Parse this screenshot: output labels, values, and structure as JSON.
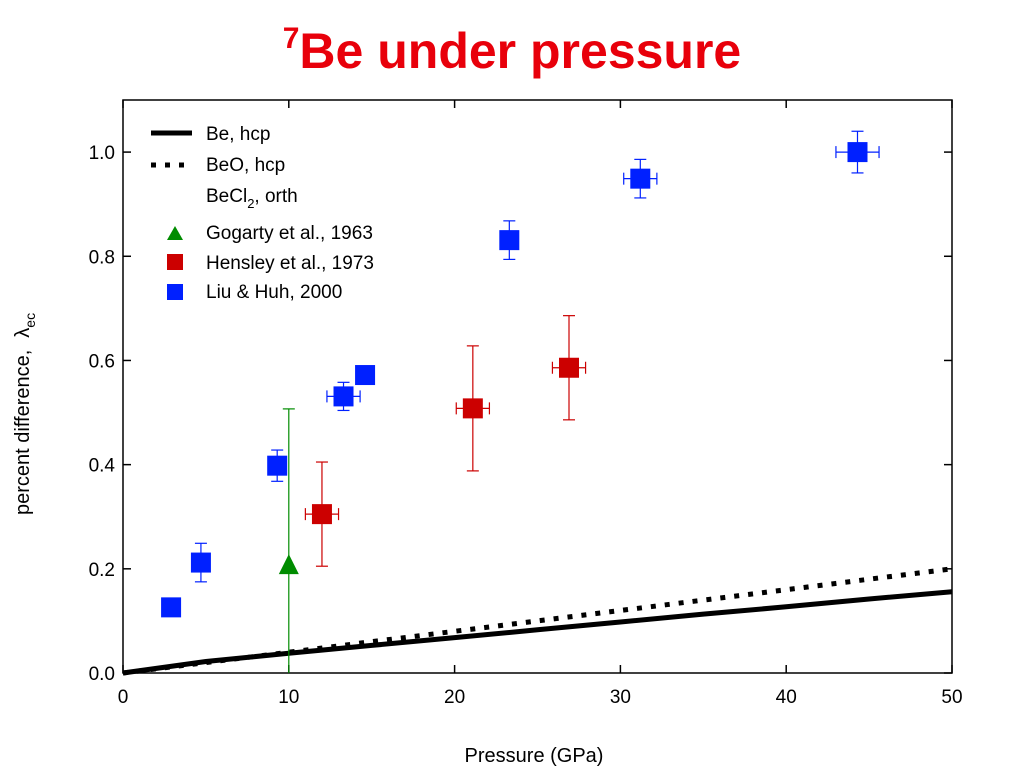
{
  "title": {
    "superscript": "7",
    "main": "Be under pressure"
  },
  "colors": {
    "title": "#e8000b",
    "gogarty": "#008c00",
    "hensley": "#cc0000",
    "liu": "#0020ff",
    "lines": "#000000"
  },
  "chart_data": {
    "type": "scatter",
    "xlabel": "Pressure (GPa)",
    "ylabel": {
      "text": "percent difference,",
      "symbol": "λ",
      "subscript": "ec"
    },
    "xlim": [
      0,
      50
    ],
    "ylim": [
      0,
      1.1
    ],
    "x_ticks": [
      0,
      10,
      20,
      30,
      40,
      50
    ],
    "x_tick_labels": [
      "0",
      "10",
      "20",
      "30",
      "40",
      "50"
    ],
    "y_ticks": [
      0,
      0.2,
      0.4,
      0.6,
      0.8,
      1.0
    ],
    "y_tick_labels": [
      "0.0",
      "0.2",
      "0.4",
      "0.6",
      "0.8",
      "1.0"
    ],
    "legend_position": "top-left",
    "lines": [
      {
        "name": "Be, hcp",
        "style": "solid",
        "x": [
          0,
          5,
          10,
          15,
          20,
          25,
          30,
          35,
          40,
          45,
          50
        ],
        "y": [
          0.0,
          0.022,
          0.038,
          0.053,
          0.068,
          0.083,
          0.098,
          0.113,
          0.127,
          0.142,
          0.156
        ]
      },
      {
        "name": "BeO, hcp",
        "style": "dotted",
        "x": [
          0,
          5,
          10,
          15,
          20,
          25,
          30,
          35,
          40,
          45,
          50
        ],
        "y": [
          0.0,
          0.02,
          0.04,
          0.06,
          0.08,
          0.1,
          0.12,
          0.14,
          0.16,
          0.18,
          0.2
        ]
      },
      {
        "name_main": "BeCl",
        "name_sub": "2",
        "name_tail": ", orth",
        "style": "none",
        "x": [],
        "y": []
      }
    ],
    "series": [
      {
        "name": "Gogarty et al., 1963",
        "marker": "triangle",
        "color": "#008c00",
        "points": [
          {
            "x": 10.0,
            "y": 0.207,
            "yerr_low": 0.207,
            "yerr_high": 0.3,
            "xerr": 0
          }
        ]
      },
      {
        "name": "Hensley et al., 1973",
        "marker": "square",
        "color": "#cc0000",
        "points": [
          {
            "x": 12.0,
            "y": 0.305,
            "yerr_low": 0.1,
            "yerr_high": 0.1,
            "xerr": 1.0
          },
          {
            "x": 21.1,
            "y": 0.508,
            "yerr_low": 0.12,
            "yerr_high": 0.12,
            "xerr": 1.0
          },
          {
            "x": 26.9,
            "y": 0.586,
            "yerr_low": 0.1,
            "yerr_high": 0.1,
            "xerr": 1.0
          }
        ]
      },
      {
        "name": "Liu & Huh, 2000",
        "marker": "square",
        "color": "#0020ff",
        "points": [
          {
            "x": 2.9,
            "y": 0.126,
            "yerr_low": 0,
            "yerr_high": 0,
            "xerr": 0
          },
          {
            "x": 4.7,
            "y": 0.212,
            "yerr_low": 0.037,
            "yerr_high": 0.037,
            "xerr": 0
          },
          {
            "x": 9.3,
            "y": 0.398,
            "yerr_low": 0.03,
            "yerr_high": 0.03,
            "xerr": 0
          },
          {
            "x": 13.3,
            "y": 0.531,
            "yerr_low": 0.027,
            "yerr_high": 0.027,
            "xerr": 1.0
          },
          {
            "x": 14.6,
            "y": 0.572,
            "yerr_low": 0.01,
            "yerr_high": 0.01,
            "xerr": 0.5
          },
          {
            "x": 23.3,
            "y": 0.831,
            "yerr_low": 0.037,
            "yerr_high": 0.037,
            "xerr": 0
          },
          {
            "x": 31.2,
            "y": 0.949,
            "yerr_low": 0.037,
            "yerr_high": 0.037,
            "xerr": 1.0
          },
          {
            "x": 44.3,
            "y": 1.0,
            "yerr_low": 0.04,
            "yerr_high": 0.04,
            "xerr": 1.3
          }
        ]
      }
    ]
  }
}
